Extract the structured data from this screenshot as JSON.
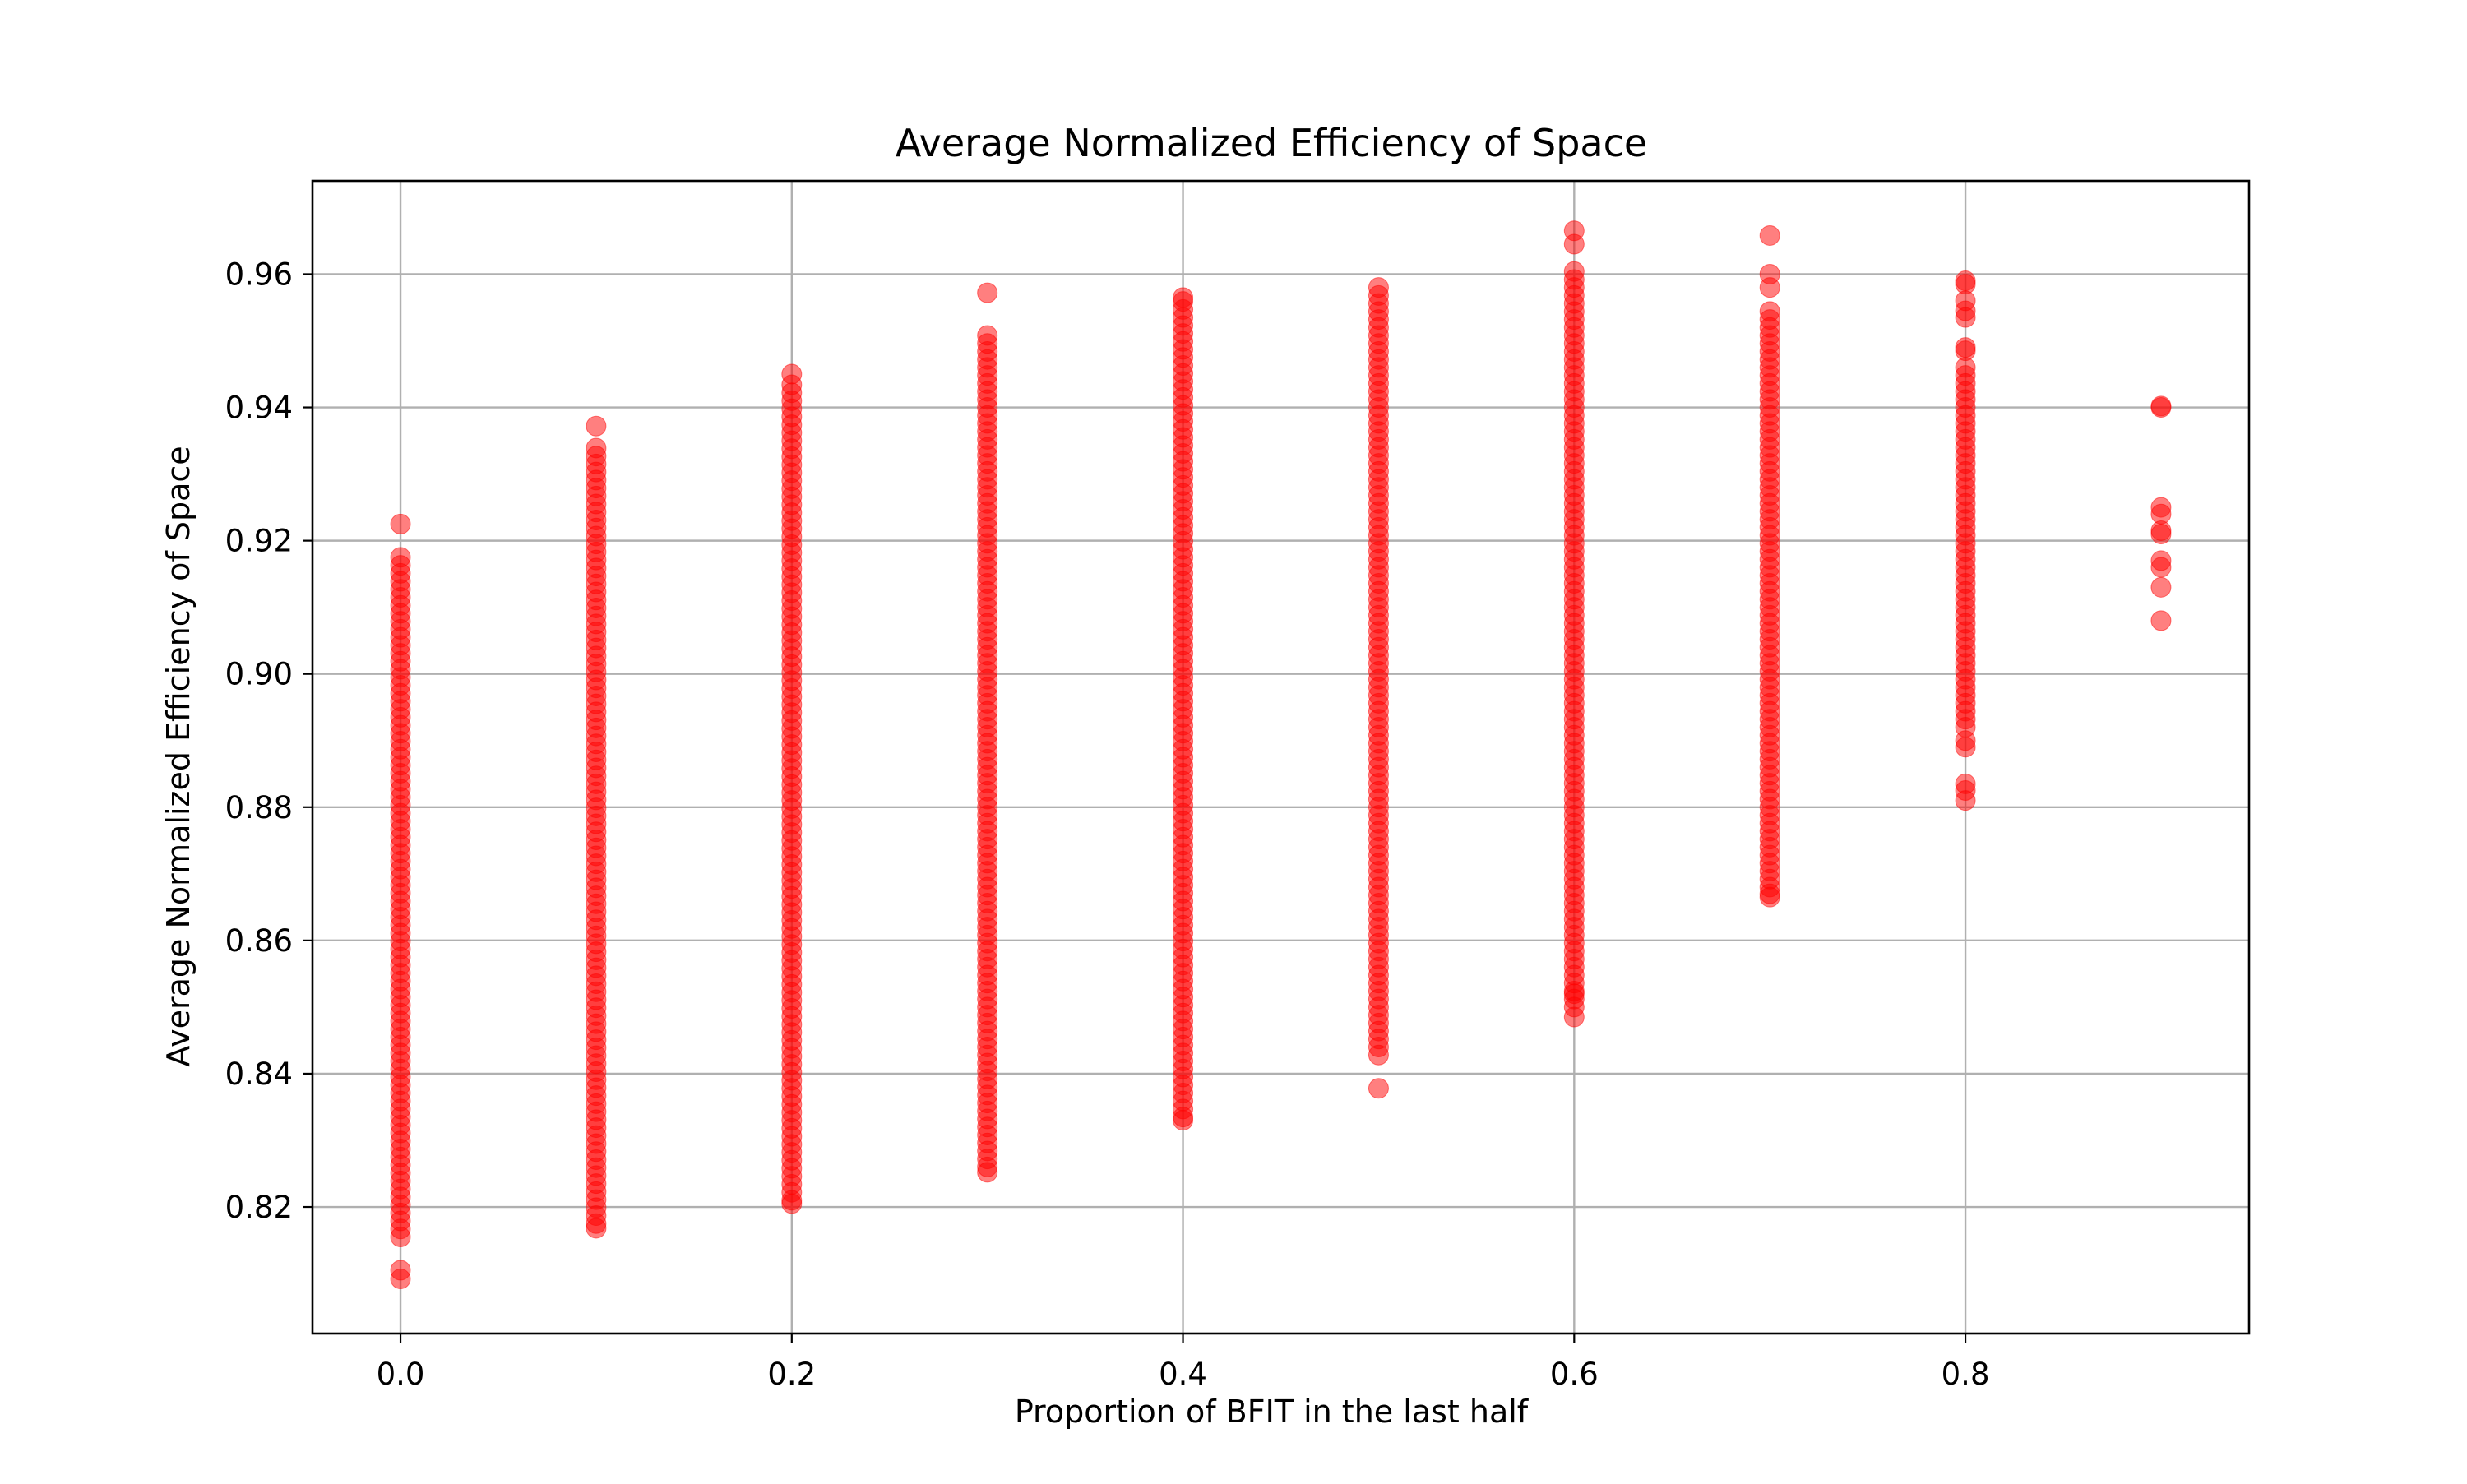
{
  "chart_data": {
    "type": "scatter",
    "title": "Average Normalized Efficiency of Space",
    "xlabel": "Proportion of BFIT in the last half",
    "ylabel": "Average Normalized Efficiency of Space",
    "xlim": [
      -0.045,
      0.945
    ],
    "ylim": [
      0.801,
      0.974
    ],
    "xticks": [
      0.0,
      0.2,
      0.4,
      0.6,
      0.8
    ],
    "xtick_labels": [
      "0.0",
      "0.2",
      "0.4",
      "0.6",
      "0.8"
    ],
    "yticks": [
      0.82,
      0.84,
      0.86,
      0.88,
      0.9,
      0.92,
      0.94,
      0.96
    ],
    "ytick_labels": [
      "0.82",
      "0.84",
      "0.86",
      "0.88",
      "0.90",
      "0.92",
      "0.94",
      "0.96"
    ],
    "grid": true,
    "marker_color": "#ff0000",
    "marker_alpha": 0.5,
    "series": [
      {
        "groups": [
          {
            "x": 0.0,
            "dense_range": [
              0.8155,
              0.9185
            ],
            "outliers": [
              0.8092,
              0.8105,
              0.9225
            ]
          },
          {
            "x": 0.1,
            "dense_range": [
              0.8175,
              0.9345
            ],
            "outliers": [
              0.8168,
              0.9372
            ]
          },
          {
            "x": 0.2,
            "dense_range": [
              0.821,
              0.944
            ],
            "outliers": [
              0.8205,
              0.945
            ]
          },
          {
            "x": 0.3,
            "dense_range": [
              0.826,
              0.9515
            ],
            "outliers": [
              0.8252,
              0.9572
            ]
          },
          {
            "x": 0.4,
            "dense_range": [
              0.8335,
              0.956
            ],
            "outliers": [
              0.833,
              0.9565
            ]
          },
          {
            "x": 0.5,
            "dense_range": [
              0.844,
              0.9575
            ],
            "outliers": [
              0.8378,
              0.8428,
              0.958
            ]
          },
          {
            "x": 0.6,
            "dense_range": [
              0.85,
              0.961
            ],
            "outliers": [
              0.8485,
              0.852,
              0.9645,
              0.9665
            ]
          },
          {
            "x": 0.7,
            "dense_range": [
              0.868,
              0.9555
            ],
            "outliers": [
              0.8665,
              0.867,
              0.958,
              0.96,
              0.9658
            ]
          },
          {
            "x": 0.8,
            "dense_range": [
              0.892,
              0.947
            ],
            "outliers": [
              0.881,
              0.8825,
              0.8835,
              0.889,
              0.89,
              0.9485,
              0.949,
              0.9535,
              0.9545,
              0.956,
              0.9585,
              0.959
            ]
          },
          {
            "x": 0.9,
            "dense_range": null,
            "outliers": [
              0.908,
              0.913,
              0.916,
              0.917,
              0.921,
              0.9215,
              0.924,
              0.925,
              0.94,
              0.9402
            ]
          }
        ]
      }
    ]
  }
}
